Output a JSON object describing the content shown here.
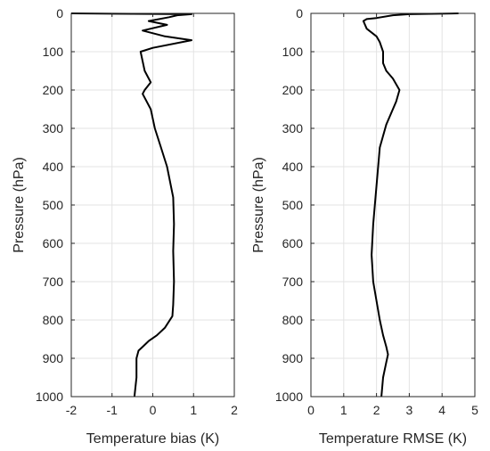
{
  "chart_data": [
    {
      "type": "line",
      "orientation": "profile",
      "xlabel": "Temperature bias (K)",
      "ylabel": "Pressure (hPa)",
      "xlim": [
        -2,
        2
      ],
      "ylim": [
        0,
        1000
      ],
      "y_reversed": true,
      "grid": true,
      "xticks": [
        "-2",
        "-1",
        "0",
        "1",
        "2"
      ],
      "yticks": [
        "0",
        "100",
        "200",
        "300",
        "400",
        "500",
        "600",
        "700",
        "800",
        "900",
        "1000"
      ],
      "series": [
        {
          "points": [
            [
              -2.0,
              0
            ],
            [
              0.95,
              2
            ],
            [
              0.6,
              5
            ],
            [
              0.4,
              10
            ],
            [
              -0.1,
              20
            ],
            [
              0.35,
              30
            ],
            [
              -0.25,
              45
            ],
            [
              0.3,
              60
            ],
            [
              0.95,
              70
            ],
            [
              0.0,
              90
            ],
            [
              -0.3,
              100
            ],
            [
              -0.2,
              150
            ],
            [
              -0.05,
              180
            ],
            [
              -0.2,
              200
            ],
            [
              -0.25,
              210
            ],
            [
              -0.05,
              250
            ],
            [
              0.05,
              300
            ],
            [
              0.2,
              350
            ],
            [
              0.35,
              400
            ],
            [
              0.5,
              480
            ],
            [
              0.52,
              550
            ],
            [
              0.5,
              620
            ],
            [
              0.52,
              700
            ],
            [
              0.5,
              760
            ],
            [
              0.48,
              790
            ],
            [
              0.3,
              820
            ],
            [
              0.1,
              840
            ],
            [
              -0.1,
              855
            ],
            [
              -0.25,
              870
            ],
            [
              -0.35,
              880
            ],
            [
              -0.4,
              900
            ],
            [
              -0.4,
              950
            ],
            [
              -0.45,
              1000
            ]
          ]
        }
      ]
    },
    {
      "type": "line",
      "orientation": "profile",
      "xlabel": "Temperature RMSE (K)",
      "ylabel": "Pressure (hPa)",
      "xlim": [
        0,
        5
      ],
      "ylim": [
        0,
        1000
      ],
      "y_reversed": true,
      "grid": true,
      "xticks": [
        "0",
        "1",
        "2",
        "3",
        "4",
        "5"
      ],
      "yticks": [
        "0",
        "100",
        "200",
        "300",
        "400",
        "500",
        "600",
        "700",
        "800",
        "900",
        "1000"
      ],
      "series": [
        {
          "points": [
            [
              4.5,
              0
            ],
            [
              3.0,
              2
            ],
            [
              2.5,
              5
            ],
            [
              2.0,
              12
            ],
            [
              1.7,
              15
            ],
            [
              1.6,
              20
            ],
            [
              1.7,
              40
            ],
            [
              2.0,
              60
            ],
            [
              2.1,
              75
            ],
            [
              2.2,
              100
            ],
            [
              2.2,
              130
            ],
            [
              2.3,
              150
            ],
            [
              2.5,
              170
            ],
            [
              2.7,
              200
            ],
            [
              2.6,
              230
            ],
            [
              2.3,
              290
            ],
            [
              2.1,
              350
            ],
            [
              2.0,
              450
            ],
            [
              1.9,
              550
            ],
            [
              1.85,
              630
            ],
            [
              1.9,
              700
            ],
            [
              2.0,
              750
            ],
            [
              2.1,
              800
            ],
            [
              2.2,
              840
            ],
            [
              2.3,
              870
            ],
            [
              2.35,
              890
            ],
            [
              2.3,
              910
            ],
            [
              2.2,
              950
            ],
            [
              2.15,
              1000
            ]
          ]
        }
      ]
    }
  ]
}
